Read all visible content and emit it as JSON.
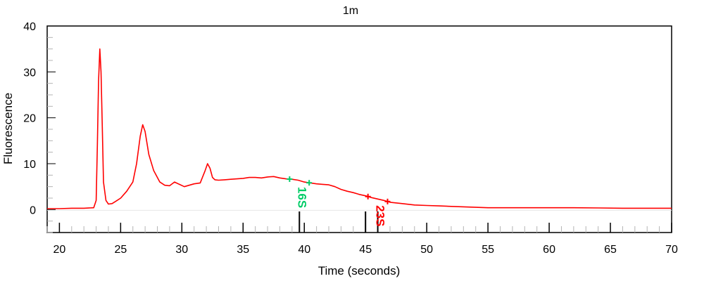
{
  "chart_data": {
    "type": "line",
    "title": "1m",
    "xlabel": "Time (seconds)",
    "ylabel": "Fluorescence",
    "xlim": [
      19,
      70
    ],
    "ylim": [
      -5,
      40
    ],
    "x_ticks": [
      20,
      25,
      30,
      35,
      40,
      45,
      50,
      55,
      60,
      65,
      70
    ],
    "x_tick_labels": [
      "20",
      "25",
      "30",
      "35",
      "40",
      "45",
      "50",
      "55",
      "60",
      "65",
      "70"
    ],
    "y_ticks": [
      0,
      10,
      20,
      30,
      40
    ],
    "y_tick_labels": [
      "0",
      "10",
      "20",
      "30",
      "40"
    ],
    "grid": false,
    "line_color": "#ff0000",
    "series": [
      {
        "x": [
          19.0,
          20.0,
          21.0,
          22.0,
          22.8,
          23.0,
          23.1,
          23.2,
          23.3,
          23.4,
          23.5,
          23.6,
          23.8,
          24.0,
          24.3,
          24.6,
          25.0,
          25.5,
          26.0,
          26.3,
          26.6,
          26.8,
          27.0,
          27.3,
          27.7,
          28.2,
          28.6,
          29.0,
          29.4,
          29.8,
          30.2,
          30.6,
          31.0,
          31.5,
          31.9,
          32.1,
          32.3,
          32.5,
          32.7,
          33.0,
          33.5,
          34.0,
          34.5,
          35.0,
          35.5,
          36.0,
          36.5,
          37.0,
          37.5,
          38.0,
          38.5,
          39.0,
          39.5,
          40.0,
          40.5,
          41.0,
          41.5,
          42.0,
          42.5,
          43.0,
          43.5,
          44.0,
          44.5,
          45.0,
          45.5,
          46.0,
          46.5,
          47.0,
          48.0,
          49.0,
          50.0,
          51.0,
          52.0,
          53.0,
          54.0,
          55.0,
          56.0,
          58.0,
          60.0,
          62.0,
          64.0,
          66.0,
          68.0,
          70.0
        ],
        "y": [
          0.2,
          0.2,
          0.3,
          0.3,
          0.4,
          2.0,
          14.0,
          28.0,
          35.0,
          30.0,
          18.0,
          6.0,
          2.0,
          1.2,
          1.3,
          1.8,
          2.5,
          4.0,
          6.0,
          10.0,
          16.0,
          18.5,
          17.0,
          12.0,
          8.5,
          6.0,
          5.3,
          5.2,
          6.0,
          5.5,
          5.0,
          5.3,
          5.6,
          5.8,
          8.5,
          10.0,
          9.0,
          7.0,
          6.5,
          6.4,
          6.5,
          6.6,
          6.7,
          6.8,
          7.0,
          7.0,
          6.9,
          7.1,
          7.2,
          6.9,
          6.7,
          6.6,
          6.4,
          6.0,
          5.8,
          5.6,
          5.5,
          5.4,
          5.0,
          4.4,
          4.0,
          3.7,
          3.3,
          3.0,
          2.6,
          2.3,
          2.0,
          1.6,
          1.3,
          1.0,
          0.9,
          0.8,
          0.7,
          0.6,
          0.5,
          0.4,
          0.4,
          0.4,
          0.4,
          0.4,
          0.35,
          0.3,
          0.3,
          0.3
        ]
      }
    ],
    "annotations": [
      {
        "label": "16S",
        "x": 39.6,
        "color": "#00cc66"
      },
      {
        "label": "23S",
        "x": 46.0,
        "color": "#ff0000"
      }
    ],
    "marker_ticks_x": [
      39.6,
      45.0,
      46.0
    ]
  }
}
